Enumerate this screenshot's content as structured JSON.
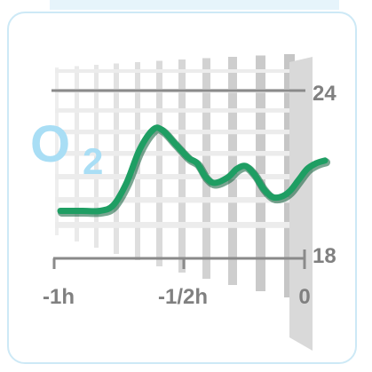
{
  "widget": {
    "symbol": {
      "letter": "O",
      "subscript": "2",
      "color": "#a9def5"
    },
    "range": {
      "upper_label": "24",
      "lower_label": "18"
    },
    "time_axis": {
      "labels": [
        "-1h",
        "-1/2h",
        "0"
      ]
    }
  },
  "colors": {
    "line": "#1e9e63",
    "line_shadow": "#0d5c38",
    "axis": "#8a8a8a",
    "card_border": "#cde9f6",
    "label": "#808080"
  },
  "chart_data": {
    "type": "line",
    "xlabel": "",
    "ylabel": "",
    "x_ticks": [
      "-1h",
      "-1/2h",
      "0"
    ],
    "y_ticks": [
      "18",
      "24"
    ],
    "xlim": [
      -60,
      0
    ],
    "ylim": [
      18,
      24
    ],
    "series": [
      {
        "x": [
          -60,
          -55,
          -51,
          -48,
          -45,
          -42,
          -39,
          -37,
          -34,
          -31,
          -29,
          -27,
          -25,
          -22,
          -20,
          -18,
          -16,
          -14,
          -12,
          -10,
          -8,
          -6,
          -4,
          -2,
          0
        ],
        "y": [
          19.7,
          19.7,
          19.7,
          19.9,
          20.7,
          21.9,
          22.6,
          22.6,
          22.1,
          21.6,
          21.4,
          20.9,
          20.7,
          20.9,
          21.2,
          21.3,
          21.0,
          20.5,
          20.2,
          20.2,
          20.4,
          20.8,
          21.2,
          21.4,
          21.5
        ]
      }
    ]
  }
}
